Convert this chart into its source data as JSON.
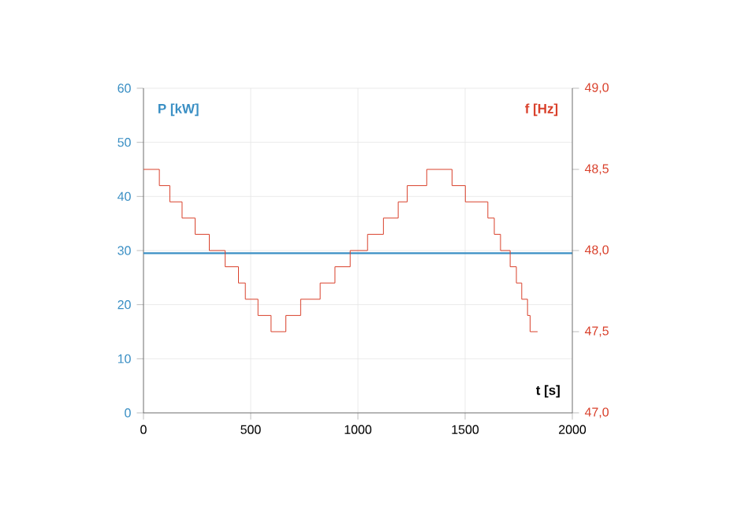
{
  "chart_data": {
    "type": "line",
    "xlabel": "t [s]",
    "ylabel": "P [kW]",
    "y2label": "f  [Hz]",
    "xlim": [
      0,
      2000
    ],
    "xticks": [
      0,
      500,
      1000,
      1500,
      2000
    ],
    "ylim": [
      0,
      60
    ],
    "yticks": [
      0,
      10,
      20,
      30,
      40,
      50,
      60
    ],
    "y2lim": [
      47,
      49
    ],
    "y2ticks": [
      {
        "value": 47,
        "label": "47,0"
      },
      {
        "value": 47.5,
        "label": "47,5"
      },
      {
        "value": 48,
        "label": "48,0"
      },
      {
        "value": 48.5,
        "label": "48,5"
      },
      {
        "value": 49,
        "label": "49,0"
      }
    ],
    "grid": true,
    "series": [
      {
        "color": "#3a8fc4",
        "x": [
          0,
          2000
        ],
        "values": [
          29.5,
          29.5
        ]
      },
      {
        "type": "step",
        "axis": "y2",
        "color": "#d9402b",
        "x": [
          0,
          74,
          123,
          180,
          241,
          307,
          381,
          443,
          475,
          534,
          595,
          664,
          733,
          824,
          893,
          964,
          1045,
          1119,
          1188,
          1230,
          1321,
          1439,
          1501,
          1606,
          1636,
          1665,
          1710,
          1739,
          1764,
          1791,
          1803,
          1838
        ],
        "values": [
          48.5,
          48.4,
          48.3,
          48.2,
          48.1,
          48.0,
          47.9,
          47.8,
          47.7,
          47.6,
          47.5,
          47.6,
          47.7,
          47.8,
          47.9,
          48.0,
          48.1,
          48.2,
          48.3,
          48.4,
          48.5,
          48.4,
          48.3,
          48.2,
          48.1,
          48.0,
          47.9,
          47.8,
          47.7,
          47.6,
          47.5,
          47.5
        ]
      }
    ]
  }
}
